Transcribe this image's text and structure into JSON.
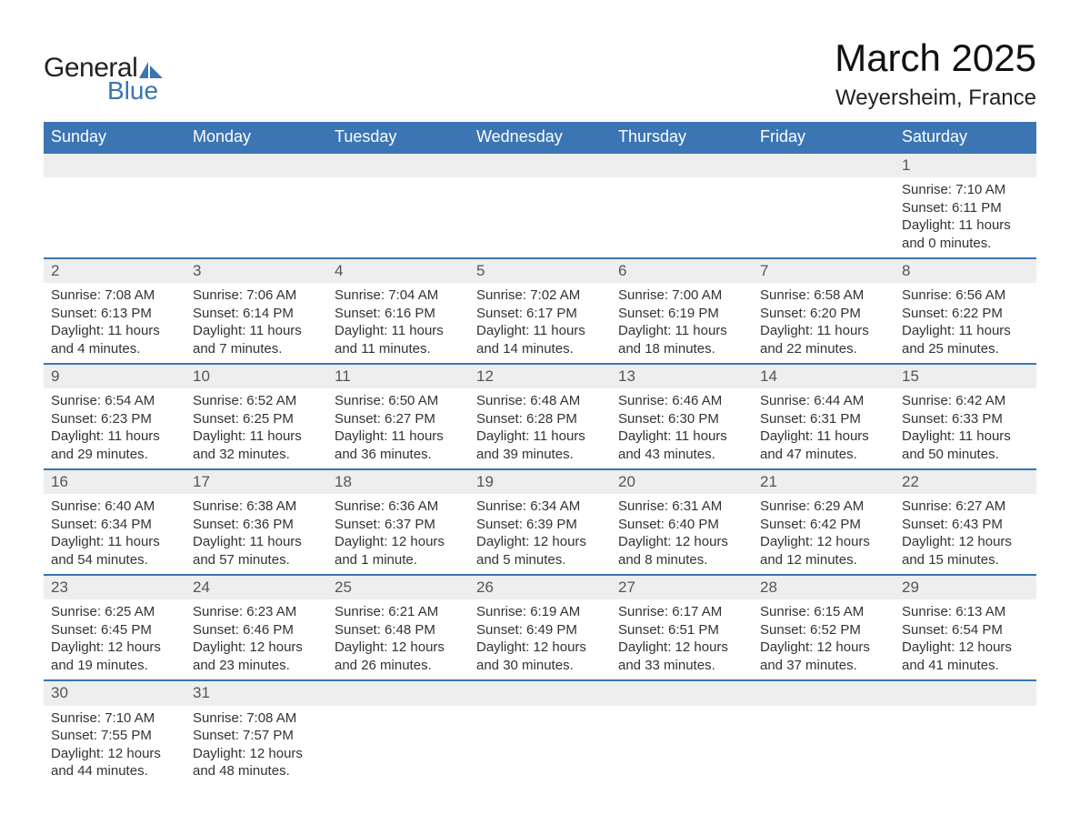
{
  "brand": {
    "word1": "General",
    "word2": "Blue",
    "tri_color": "#3b75b3"
  },
  "header": {
    "title": "March 2025",
    "location": "Weyersheim, France"
  },
  "colors": {
    "header_bg": "#3b75b3",
    "header_text": "#ffffff",
    "daynum_bg": "#eeeeee",
    "row_border": "#3b75b3",
    "body_text": "#333333"
  },
  "fonts": {
    "title_pt": 42,
    "location_pt": 24,
    "th_pt": 18,
    "cell_pt": 15
  },
  "daynames": [
    "Sunday",
    "Monday",
    "Tuesday",
    "Wednesday",
    "Thursday",
    "Friday",
    "Saturday"
  ],
  "weeks": [
    [
      null,
      null,
      null,
      null,
      null,
      null,
      {
        "n": "1",
        "sr": "Sunrise: 7:10 AM",
        "ss": "Sunset: 6:11 PM",
        "d1": "Daylight: 11 hours",
        "d2": "and 0 minutes."
      }
    ],
    [
      {
        "n": "2",
        "sr": "Sunrise: 7:08 AM",
        "ss": "Sunset: 6:13 PM",
        "d1": "Daylight: 11 hours",
        "d2": "and 4 minutes."
      },
      {
        "n": "3",
        "sr": "Sunrise: 7:06 AM",
        "ss": "Sunset: 6:14 PM",
        "d1": "Daylight: 11 hours",
        "d2": "and 7 minutes."
      },
      {
        "n": "4",
        "sr": "Sunrise: 7:04 AM",
        "ss": "Sunset: 6:16 PM",
        "d1": "Daylight: 11 hours",
        "d2": "and 11 minutes."
      },
      {
        "n": "5",
        "sr": "Sunrise: 7:02 AM",
        "ss": "Sunset: 6:17 PM",
        "d1": "Daylight: 11 hours",
        "d2": "and 14 minutes."
      },
      {
        "n": "6",
        "sr": "Sunrise: 7:00 AM",
        "ss": "Sunset: 6:19 PM",
        "d1": "Daylight: 11 hours",
        "d2": "and 18 minutes."
      },
      {
        "n": "7",
        "sr": "Sunrise: 6:58 AM",
        "ss": "Sunset: 6:20 PM",
        "d1": "Daylight: 11 hours",
        "d2": "and 22 minutes."
      },
      {
        "n": "8",
        "sr": "Sunrise: 6:56 AM",
        "ss": "Sunset: 6:22 PM",
        "d1": "Daylight: 11 hours",
        "d2": "and 25 minutes."
      }
    ],
    [
      {
        "n": "9",
        "sr": "Sunrise: 6:54 AM",
        "ss": "Sunset: 6:23 PM",
        "d1": "Daylight: 11 hours",
        "d2": "and 29 minutes."
      },
      {
        "n": "10",
        "sr": "Sunrise: 6:52 AM",
        "ss": "Sunset: 6:25 PM",
        "d1": "Daylight: 11 hours",
        "d2": "and 32 minutes."
      },
      {
        "n": "11",
        "sr": "Sunrise: 6:50 AM",
        "ss": "Sunset: 6:27 PM",
        "d1": "Daylight: 11 hours",
        "d2": "and 36 minutes."
      },
      {
        "n": "12",
        "sr": "Sunrise: 6:48 AM",
        "ss": "Sunset: 6:28 PM",
        "d1": "Daylight: 11 hours",
        "d2": "and 39 minutes."
      },
      {
        "n": "13",
        "sr": "Sunrise: 6:46 AM",
        "ss": "Sunset: 6:30 PM",
        "d1": "Daylight: 11 hours",
        "d2": "and 43 minutes."
      },
      {
        "n": "14",
        "sr": "Sunrise: 6:44 AM",
        "ss": "Sunset: 6:31 PM",
        "d1": "Daylight: 11 hours",
        "d2": "and 47 minutes."
      },
      {
        "n": "15",
        "sr": "Sunrise: 6:42 AM",
        "ss": "Sunset: 6:33 PM",
        "d1": "Daylight: 11 hours",
        "d2": "and 50 minutes."
      }
    ],
    [
      {
        "n": "16",
        "sr": "Sunrise: 6:40 AM",
        "ss": "Sunset: 6:34 PM",
        "d1": "Daylight: 11 hours",
        "d2": "and 54 minutes."
      },
      {
        "n": "17",
        "sr": "Sunrise: 6:38 AM",
        "ss": "Sunset: 6:36 PM",
        "d1": "Daylight: 11 hours",
        "d2": "and 57 minutes."
      },
      {
        "n": "18",
        "sr": "Sunrise: 6:36 AM",
        "ss": "Sunset: 6:37 PM",
        "d1": "Daylight: 12 hours",
        "d2": "and 1 minute."
      },
      {
        "n": "19",
        "sr": "Sunrise: 6:34 AM",
        "ss": "Sunset: 6:39 PM",
        "d1": "Daylight: 12 hours",
        "d2": "and 5 minutes."
      },
      {
        "n": "20",
        "sr": "Sunrise: 6:31 AM",
        "ss": "Sunset: 6:40 PM",
        "d1": "Daylight: 12 hours",
        "d2": "and 8 minutes."
      },
      {
        "n": "21",
        "sr": "Sunrise: 6:29 AM",
        "ss": "Sunset: 6:42 PM",
        "d1": "Daylight: 12 hours",
        "d2": "and 12 minutes."
      },
      {
        "n": "22",
        "sr": "Sunrise: 6:27 AM",
        "ss": "Sunset: 6:43 PM",
        "d1": "Daylight: 12 hours",
        "d2": "and 15 minutes."
      }
    ],
    [
      {
        "n": "23",
        "sr": "Sunrise: 6:25 AM",
        "ss": "Sunset: 6:45 PM",
        "d1": "Daylight: 12 hours",
        "d2": "and 19 minutes."
      },
      {
        "n": "24",
        "sr": "Sunrise: 6:23 AM",
        "ss": "Sunset: 6:46 PM",
        "d1": "Daylight: 12 hours",
        "d2": "and 23 minutes."
      },
      {
        "n": "25",
        "sr": "Sunrise: 6:21 AM",
        "ss": "Sunset: 6:48 PM",
        "d1": "Daylight: 12 hours",
        "d2": "and 26 minutes."
      },
      {
        "n": "26",
        "sr": "Sunrise: 6:19 AM",
        "ss": "Sunset: 6:49 PM",
        "d1": "Daylight: 12 hours",
        "d2": "and 30 minutes."
      },
      {
        "n": "27",
        "sr": "Sunrise: 6:17 AM",
        "ss": "Sunset: 6:51 PM",
        "d1": "Daylight: 12 hours",
        "d2": "and 33 minutes."
      },
      {
        "n": "28",
        "sr": "Sunrise: 6:15 AM",
        "ss": "Sunset: 6:52 PM",
        "d1": "Daylight: 12 hours",
        "d2": "and 37 minutes."
      },
      {
        "n": "29",
        "sr": "Sunrise: 6:13 AM",
        "ss": "Sunset: 6:54 PM",
        "d1": "Daylight: 12 hours",
        "d2": "and 41 minutes."
      }
    ],
    [
      {
        "n": "30",
        "sr": "Sunrise: 7:10 AM",
        "ss": "Sunset: 7:55 PM",
        "d1": "Daylight: 12 hours",
        "d2": "and 44 minutes."
      },
      {
        "n": "31",
        "sr": "Sunrise: 7:08 AM",
        "ss": "Sunset: 7:57 PM",
        "d1": "Daylight: 12 hours",
        "d2": "and 48 minutes."
      },
      null,
      null,
      null,
      null,
      null
    ]
  ]
}
